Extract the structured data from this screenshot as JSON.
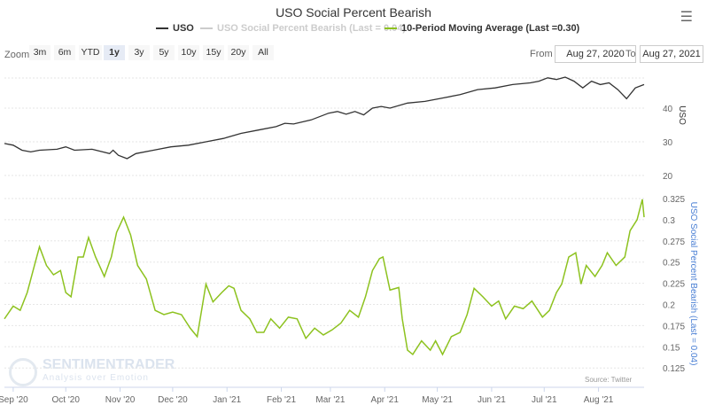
{
  "chart_data": {
    "type": "line",
    "title": "USO Social Percent Bearish",
    "legend": [
      {
        "name": "USO",
        "color": "#333333"
      },
      {
        "name": "USO Social Percent Bearish (Last = 0.04)",
        "color": "#cccccc"
      },
      {
        "name": "10-Period Moving Average (Last =0.30)",
        "color": "#8dc21f"
      }
    ],
    "x_range": [
      "Aug 27, 2020",
      "Aug 27, 2021"
    ],
    "x_ticks": [
      {
        "label": "Sep '20",
        "day": 5
      },
      {
        "label": "Oct '20",
        "day": 35
      },
      {
        "label": "Nov '20",
        "day": 66
      },
      {
        "label": "Dec '20",
        "day": 96
      },
      {
        "label": "Jan '21",
        "day": 127
      },
      {
        "label": "Feb '21",
        "day": 158
      },
      {
        "label": "Mar '21",
        "day": 186
      },
      {
        "label": "Apr '21",
        "day": 217
      },
      {
        "label": "May '21",
        "day": 247
      },
      {
        "label": "Jun '21",
        "day": 278
      },
      {
        "label": "Jul '21",
        "day": 308
      },
      {
        "label": "Aug '21",
        "day": 339
      }
    ],
    "uso_axis": {
      "label": "USO",
      "ticks": [
        "40",
        "30",
        "20"
      ],
      "tick_values": [
        40,
        30,
        20
      ]
    },
    "ma_axis": {
      "label": "USO Social Percent Bearish (Last = 0.04)",
      "ticks": [
        "0.325",
        "0.3",
        "0.275",
        "0.25",
        "0.225",
        "0.2",
        "0.175",
        "0.15",
        "0.125"
      ],
      "tick_values": [
        0.325,
        0.3,
        0.275,
        0.25,
        0.225,
        0.2,
        0.175,
        0.15,
        0.125
      ]
    },
    "uso": [
      [
        0,
        29.5
      ],
      [
        5,
        29
      ],
      [
        10,
        27.5
      ],
      [
        15,
        27
      ],
      [
        20,
        27.5
      ],
      [
        30,
        27.8
      ],
      [
        35,
        28.5
      ],
      [
        40,
        27.5
      ],
      [
        50,
        27.8
      ],
      [
        60,
        26.5
      ],
      [
        62,
        27.5
      ],
      [
        65,
        26
      ],
      [
        70,
        25
      ],
      [
        75,
        26.5
      ],
      [
        85,
        27.5
      ],
      [
        95,
        28.5
      ],
      [
        105,
        29
      ],
      [
        115,
        30
      ],
      [
        125,
        31
      ],
      [
        135,
        32.5
      ],
      [
        145,
        33.5
      ],
      [
        155,
        34.5
      ],
      [
        160,
        35.5
      ],
      [
        165,
        35.3
      ],
      [
        175,
        36.5
      ],
      [
        185,
        38.5
      ],
      [
        190,
        39
      ],
      [
        195,
        38.2
      ],
      [
        200,
        39
      ],
      [
        205,
        38
      ],
      [
        210,
        40
      ],
      [
        215,
        40.5
      ],
      [
        220,
        40
      ],
      [
        230,
        41.5
      ],
      [
        240,
        42
      ],
      [
        250,
        43
      ],
      [
        260,
        44
      ],
      [
        270,
        45.5
      ],
      [
        280,
        46
      ],
      [
        290,
        47
      ],
      [
        300,
        47.5
      ],
      [
        305,
        48
      ],
      [
        310,
        49
      ],
      [
        315,
        48.5
      ],
      [
        320,
        49.2
      ],
      [
        325,
        48
      ],
      [
        330,
        46
      ],
      [
        335,
        48
      ],
      [
        340,
        47
      ],
      [
        345,
        47.5
      ],
      [
        350,
        45.5
      ],
      [
        355,
        42.8
      ],
      [
        360,
        46
      ],
      [
        365,
        47
      ]
    ],
    "ma": [
      [
        0,
        0.183
      ],
      [
        5,
        0.198
      ],
      [
        9,
        0.193
      ],
      [
        13,
        0.214
      ],
      [
        17,
        0.245
      ],
      [
        20,
        0.268
      ],
      [
        24,
        0.246
      ],
      [
        28,
        0.235
      ],
      [
        32,
        0.24
      ],
      [
        35,
        0.214
      ],
      [
        38,
        0.209
      ],
      [
        42,
        0.256
      ],
      [
        45,
        0.256
      ],
      [
        48,
        0.279
      ],
      [
        52,
        0.256
      ],
      [
        57,
        0.233
      ],
      [
        61,
        0.256
      ],
      [
        64,
        0.285
      ],
      [
        68,
        0.303
      ],
      [
        72,
        0.282
      ],
      [
        76,
        0.246
      ],
      [
        81,
        0.23
      ],
      [
        86,
        0.193
      ],
      [
        91,
        0.188
      ],
      [
        96,
        0.191
      ],
      [
        101,
        0.188
      ],
      [
        106,
        0.172
      ],
      [
        110,
        0.162
      ],
      [
        115,
        0.224
      ],
      [
        119,
        0.203
      ],
      [
        124,
        0.214
      ],
      [
        128,
        0.222
      ],
      [
        131,
        0.219
      ],
      [
        135,
        0.193
      ],
      [
        140,
        0.183
      ],
      [
        144,
        0.167
      ],
      [
        148,
        0.167
      ],
      [
        152,
        0.183
      ],
      [
        157,
        0.172
      ],
      [
        162,
        0.185
      ],
      [
        167,
        0.183
      ],
      [
        172,
        0.16
      ],
      [
        177,
        0.172
      ],
      [
        182,
        0.164
      ],
      [
        187,
        0.17
      ],
      [
        192,
        0.178
      ],
      [
        197,
        0.193
      ],
      [
        202,
        0.185
      ],
      [
        206,
        0.209
      ],
      [
        210,
        0.24
      ],
      [
        214,
        0.254
      ],
      [
        216,
        0.256
      ],
      [
        220,
        0.217
      ],
      [
        225,
        0.22
      ],
      [
        227,
        0.183
      ],
      [
        230,
        0.146
      ],
      [
        233,
        0.141
      ],
      [
        238,
        0.157
      ],
      [
        243,
        0.146
      ],
      [
        246,
        0.157
      ],
      [
        250,
        0.141
      ],
      [
        255,
        0.162
      ],
      [
        260,
        0.167
      ],
      [
        264,
        0.188
      ],
      [
        268,
        0.219
      ],
      [
        273,
        0.209
      ],
      [
        278,
        0.198
      ],
      [
        282,
        0.204
      ],
      [
        286,
        0.183
      ],
      [
        291,
        0.198
      ],
      [
        296,
        0.195
      ],
      [
        301,
        0.204
      ],
      [
        307,
        0.185
      ],
      [
        311,
        0.193
      ],
      [
        315,
        0.214
      ],
      [
        318,
        0.224
      ],
      [
        322,
        0.256
      ],
      [
        326,
        0.261
      ],
      [
        329,
        0.224
      ],
      [
        332,
        0.246
      ],
      [
        337,
        0.233
      ],
      [
        341,
        0.246
      ],
      [
        344,
        0.261
      ],
      [
        349,
        0.246
      ],
      [
        354,
        0.256
      ],
      [
        357,
        0.287
      ],
      [
        361,
        0.3
      ],
      [
        364,
        0.324
      ],
      [
        365,
        0.303
      ]
    ],
    "source": "Source: Twitter"
  },
  "ui": {
    "menu_icon": "hamburger-icon",
    "zoom_label": "Zoom",
    "zoom_buttons": [
      "3m",
      "6m",
      "YTD",
      "1y",
      "3y",
      "5y",
      "10y",
      "15y",
      "20y",
      "All"
    ],
    "selected_zoom": "1y",
    "from_label": "From",
    "from_value": "Aug 27, 2020",
    "to_label": "To",
    "to_value": "Aug 27, 2021",
    "watermark": "SENTIMENTRADER",
    "watermark_sub": "Analysis over Emotion"
  }
}
